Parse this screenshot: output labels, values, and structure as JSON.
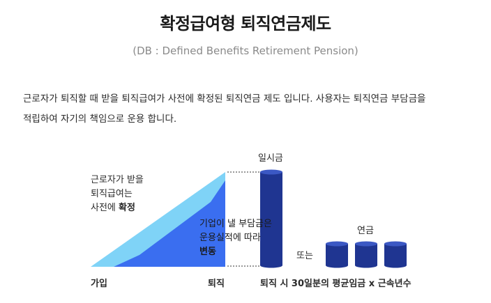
{
  "title": "확정급여형 퇴직연금제도",
  "subtitle": "(DB : Defined Benefits Retirement Pension)",
  "description": {
    "line1": "근로자가 퇴직할 때 받을 퇴직급여가 사전에 확정된 퇴직연금 제도 입니다. 사용자는 퇴직연금 부담금을",
    "line2": "적립하여 자기의 책임으로 운용 합니다."
  },
  "diagram": {
    "fixed_note": {
      "line1": "근로자가 받을",
      "line2": "퇴직급여는",
      "line3_prefix": "사전에 ",
      "line3_bold": "확정"
    },
    "variable_note": {
      "line1": "기업이 낼 부담금은",
      "line2": "운용실적에 따라",
      "line3": "변동"
    },
    "lump_sum_label": "일시금",
    "or_label": "또는",
    "annuity_label": "연금",
    "axis_start": "가입",
    "axis_end": "퇴직",
    "formula": "퇴직 시 30일분의 평균임금 x 근속년수",
    "colors": {
      "light_blue": "#7fd3f7",
      "mid_blue": "#3a6ef0",
      "navy": "#1f3591",
      "navy_top": "#3b58c4"
    }
  }
}
